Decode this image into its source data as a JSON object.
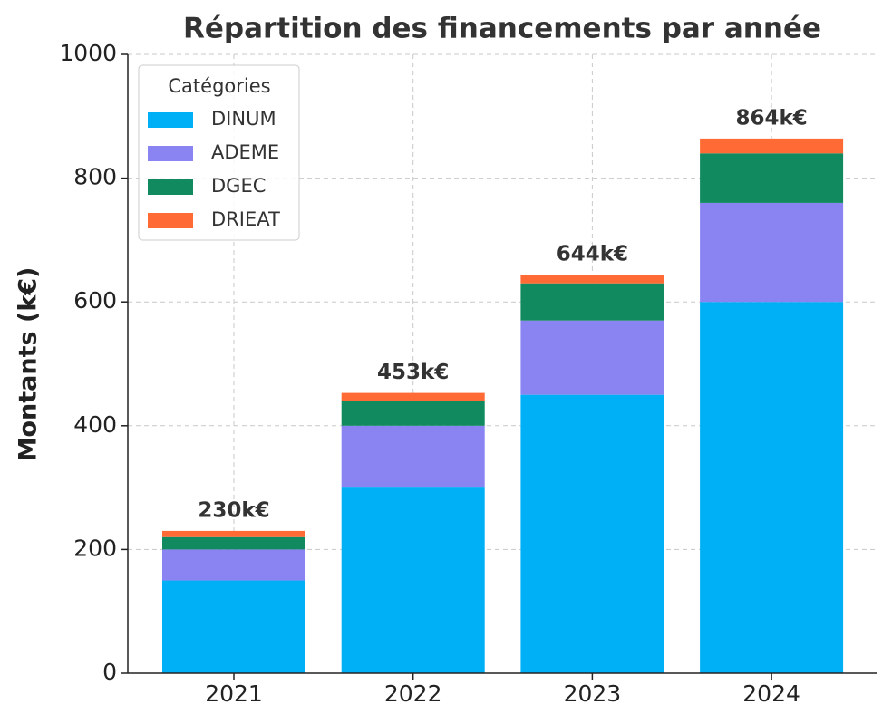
{
  "chart_data": {
    "type": "stacked_bar",
    "title": "Répartition des financements par année",
    "ylabel": "Montants (k€)",
    "categories": [
      "2021",
      "2022",
      "2023",
      "2024"
    ],
    "series": [
      {
        "name": "DINUM",
        "color": "#00b0f6",
        "values": [
          150,
          300,
          450,
          600
        ]
      },
      {
        "name": "ADEME",
        "color": "#8a84f2",
        "values": [
          50,
          100,
          120,
          160
        ]
      },
      {
        "name": "DGEC",
        "color": "#108a5e",
        "values": [
          20,
          40,
          60,
          80
        ]
      },
      {
        "name": "DRIEAT",
        "color": "#ff6a35",
        "values": [
          10,
          13,
          14,
          24
        ]
      }
    ],
    "totals": {
      "values": [
        230,
        453,
        644,
        864
      ],
      "value_labels": [
        "230k€",
        "453k€",
        "644k€",
        "864k€"
      ]
    },
    "legend_title": "Catégories",
    "legend": "upper left",
    "ylim": [
      0,
      1000
    ],
    "yticks": [
      0,
      200,
      400,
      600,
      800,
      1000
    ],
    "grid": true
  }
}
